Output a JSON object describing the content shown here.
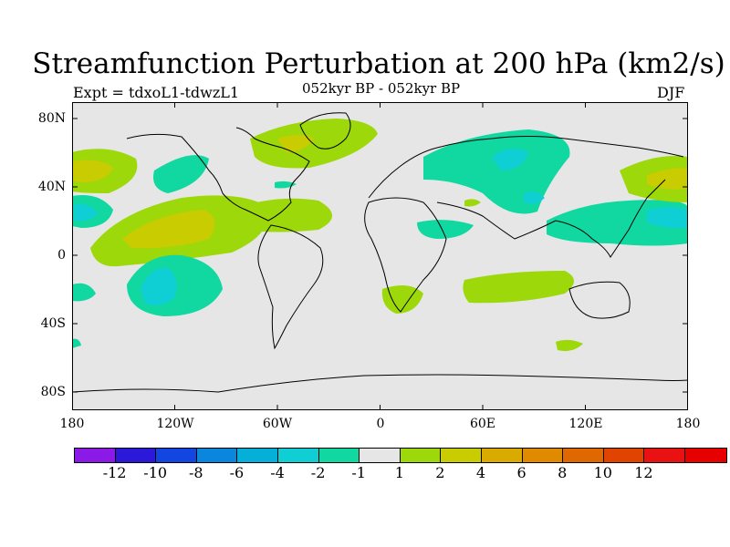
{
  "title": "Streamfunction Perturbation at 200 hPa (km2/s)",
  "experiment": "Expt = tdxoL1-tdwzL1",
  "period": "052kyr BP - 052kyr BP",
  "season": "DJF",
  "map": {
    "land_color": "#e6e6e6",
    "lat_ticks": [
      "80N",
      "40N",
      "0",
      "40S",
      "80S"
    ],
    "lon_ticks": [
      "180",
      "120W",
      "60W",
      "0",
      "60E",
      "120E",
      "180"
    ]
  },
  "colorbar": {
    "colors": [
      "#8c1ae6",
      "#2b18d9",
      "#1346e0",
      "#0a86dc",
      "#05afd7",
      "#10cfd4",
      "#10d8a0",
      "#e6e6e6",
      "#9cd80a",
      "#c9cc00",
      "#d9aa00",
      "#e08a00",
      "#e06800",
      "#e04400",
      "#e81212",
      "#e60000"
    ],
    "labels": [
      "-12",
      "-10",
      "-8",
      "-6",
      "-4",
      "-2",
      "-1",
      "1",
      "2",
      "4",
      "6",
      "8",
      "10",
      "12"
    ]
  },
  "chart_data": {
    "type": "heatmap",
    "title": "Streamfunction Perturbation at 200 hPa (km2/s)",
    "subtitle": "052kyr BP - 052kyr BP",
    "variable": "streamfunction perturbation",
    "units": "km2/s",
    "level_hPa": 200,
    "season": "DJF",
    "x_range": [
      -180,
      180
    ],
    "y_range": [
      -90,
      90
    ],
    "contour_levels": [
      -12,
      -10,
      -8,
      -6,
      -4,
      -2,
      -1,
      1,
      2,
      4,
      6,
      8,
      10,
      12
    ],
    "features": [
      {
        "region": "central North Pacific",
        "value_range": [
          2,
          4
        ]
      },
      {
        "region": "northwest North Pacific",
        "value_range": [
          2,
          4
        ]
      },
      {
        "region": "tropical eastern Pacific",
        "value_range": [
          2,
          4
        ]
      },
      {
        "region": "western Atlantic / Caribbean",
        "value_range": [
          1,
          2
        ]
      },
      {
        "region": "North Atlantic / Greenland",
        "value_range": [
          1,
          2
        ]
      },
      {
        "region": "Eurasia / Siberia",
        "value_range": [
          -2,
          -1
        ]
      },
      {
        "region": "central Asia",
        "value_range": [
          -4,
          -2
        ]
      },
      {
        "region": "tropical western Pacific",
        "value_range": [
          -4,
          -2
        ]
      },
      {
        "region": "South Pacific",
        "value_range": [
          -6,
          -4
        ]
      },
      {
        "region": "Indian Ocean",
        "value_range": [
          1,
          2
        ]
      },
      {
        "region": "South Atlantic / South Africa",
        "value_range": [
          1,
          2
        ]
      },
      {
        "region": "Arabian Sea",
        "value_range": [
          -2,
          -1
        ]
      }
    ]
  }
}
